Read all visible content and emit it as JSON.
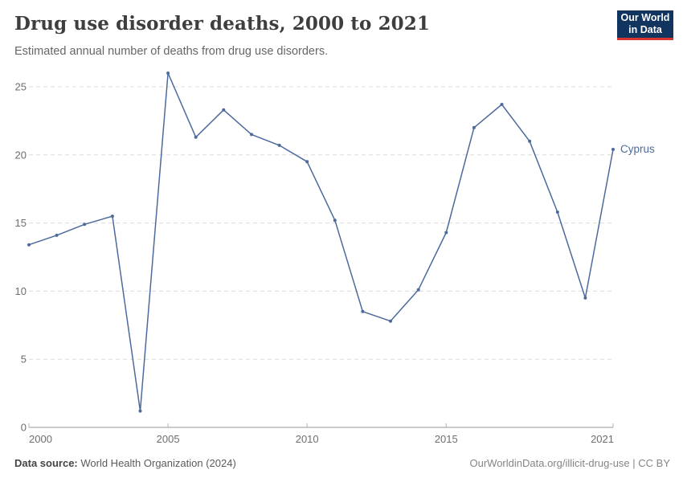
{
  "header": {
    "title": "Drug use disorder deaths, 2000 to 2021",
    "subtitle": "Estimated annual number of deaths from drug use disorders."
  },
  "logo": {
    "line1": "Our World",
    "line2": "in Data",
    "bg_color": "#12355f",
    "accent_color": "#d8352e"
  },
  "chart_data": {
    "type": "line",
    "title": "Drug use disorder deaths, 2000 to 2021",
    "xlabel": "",
    "ylabel": "",
    "x": [
      2000,
      2001,
      2002,
      2003,
      2004,
      2005,
      2006,
      2007,
      2008,
      2009,
      2010,
      2011,
      2012,
      2013,
      2014,
      2015,
      2016,
      2017,
      2018,
      2019,
      2020,
      2021
    ],
    "series": [
      {
        "name": "Cyprus",
        "values": [
          13.4,
          14.1,
          14.9,
          15.5,
          1.2,
          26.0,
          21.3,
          23.3,
          21.5,
          20.7,
          19.5,
          15.2,
          8.5,
          7.8,
          10.1,
          14.3,
          22.0,
          23.7,
          21.0,
          15.8,
          9.5,
          20.4
        ]
      }
    ],
    "xticks": [
      2000,
      2005,
      2010,
      2015,
      2021
    ],
    "yticks": [
      0,
      5,
      10,
      15,
      20,
      25
    ],
    "ylim": [
      0,
      26.5
    ],
    "grid": true,
    "grid_style": "dashed",
    "legend_position": "end-of-line",
    "colors": {
      "line": "#4c6a9c",
      "gridline": "#dcdcdc",
      "axis": "#999999",
      "tick": "#b5b5b5",
      "tick_label": "#6e6e6e"
    }
  },
  "footer": {
    "source_label": "Data source:",
    "source_value": " World Health Organization (2024)",
    "credit": "OurWorldinData.org/illicit-drug-use | CC BY"
  }
}
